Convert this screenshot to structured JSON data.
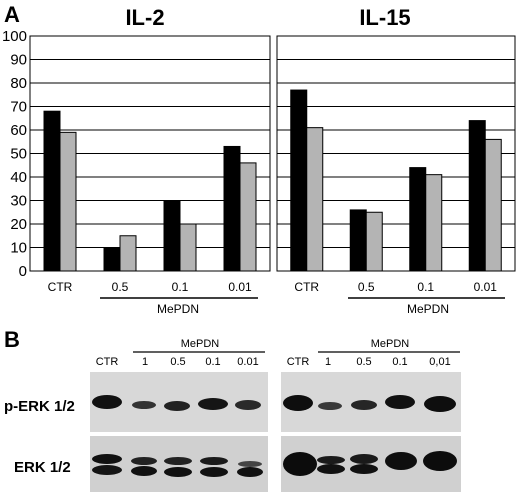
{
  "panel_a": {
    "label": "A",
    "y_ticks": [
      "100",
      "90",
      "80",
      "70",
      "60",
      "50",
      "40",
      "30",
      "20",
      "10",
      "0"
    ]
  },
  "panel_b": {
    "label": "B",
    "row_labels": [
      "p-ERK 1/2",
      "ERK 1/2"
    ],
    "blots": [
      {
        "ctr_label": "CTR",
        "group_label": "MePDN",
        "lanes": [
          "1",
          "0.5",
          "0.1",
          "0.01"
        ]
      },
      {
        "ctr_label": "CTR",
        "group_label": "MePDN",
        "lanes": [
          "1",
          "0.5",
          "0.1",
          "0,01"
        ]
      }
    ]
  },
  "colors": {
    "series_dark": "#000000",
    "series_light": "#b4b4b4",
    "blot_bg": "#d6d6d6",
    "band": "#111111"
  },
  "chart_data": [
    {
      "type": "bar",
      "title": "IL-2",
      "categories": [
        "CTR",
        "0.5",
        "0.1",
        "0.01"
      ],
      "group_label": "MePDN",
      "ylim": [
        0,
        100
      ],
      "grid": true,
      "series": [
        {
          "values": [
            68,
            10,
            30,
            53
          ]
        },
        {
          "values": [
            59,
            15,
            20,
            46
          ]
        }
      ]
    },
    {
      "type": "bar",
      "title": "IL-15",
      "categories": [
        "CTR",
        "0.5",
        "0.1",
        "0.01"
      ],
      "group_label": "MePDN",
      "ylim": [
        0,
        100
      ],
      "grid": true,
      "series": [
        {
          "values": [
            77,
            26,
            44,
            64
          ]
        },
        {
          "values": [
            61,
            25,
            41,
            56
          ]
        }
      ]
    }
  ]
}
